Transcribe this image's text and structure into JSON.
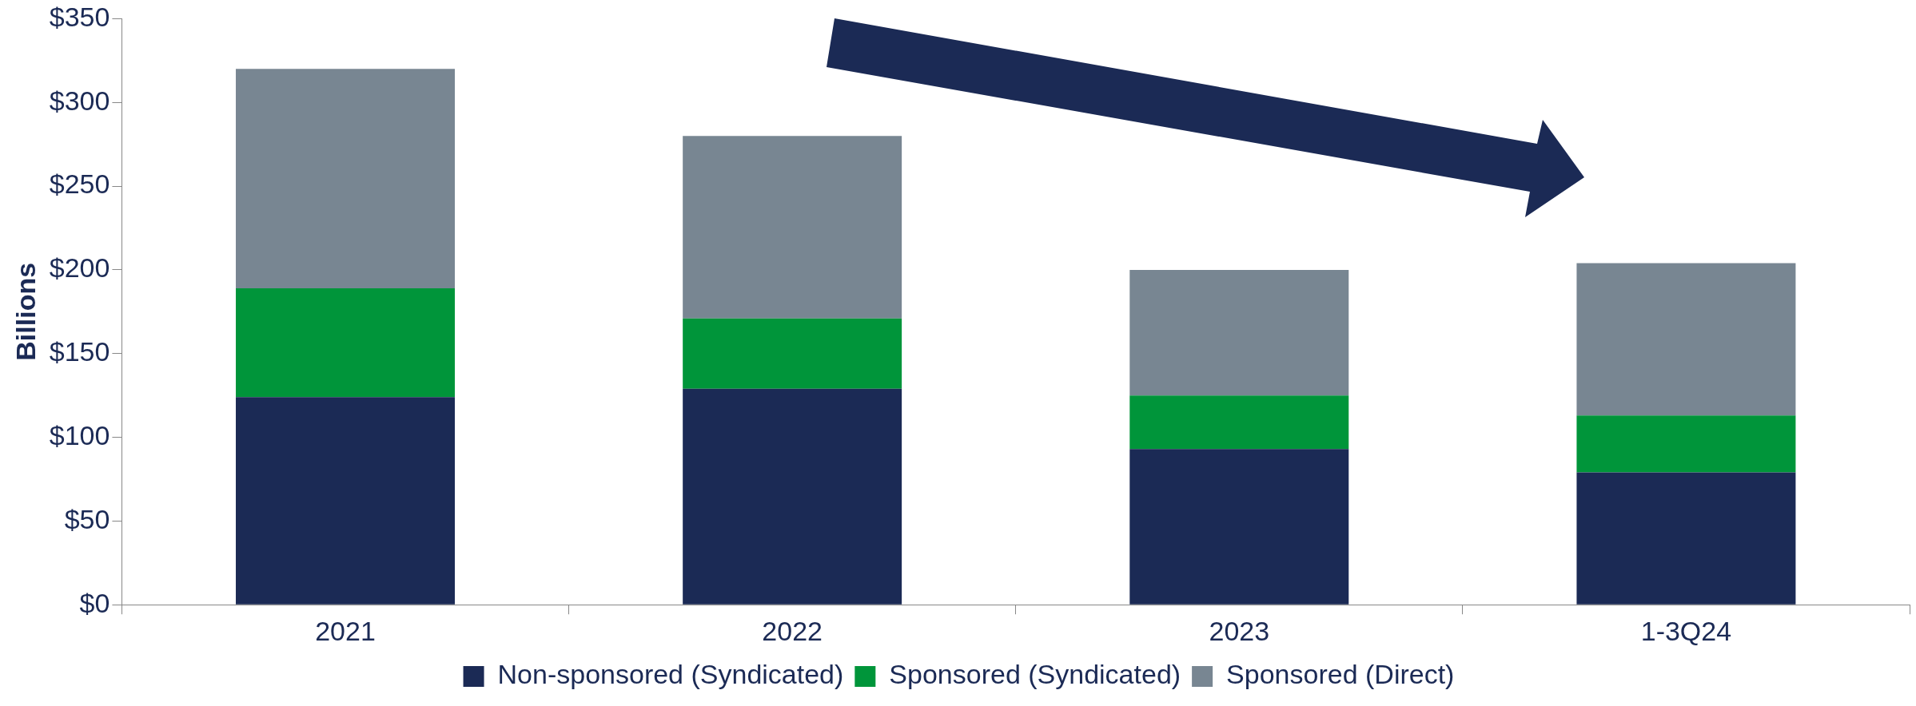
{
  "chart_data": {
    "type": "bar",
    "stacked": true,
    "ylabel": "Billions",
    "categories": [
      "2021",
      "2022",
      "2023",
      "1-3Q24"
    ],
    "series": [
      {
        "name": "Non-sponsored (Syndicated)",
        "color": "#1b2a55",
        "values": [
          124,
          129,
          93,
          79
        ]
      },
      {
        "name": "Sponsored (Syndicated)",
        "color": "#00953a",
        "values": [
          65,
          42,
          32,
          34
        ]
      },
      {
        "name": "Sponsored (Direct)",
        "color": "#788692",
        "values": [
          131,
          109,
          75,
          91
        ]
      }
    ],
    "ylim": [
      0,
      350
    ],
    "yticks": [
      {
        "value": 0,
        "label": "$0"
      },
      {
        "value": 50,
        "label": "$50"
      },
      {
        "value": 100,
        "label": "$100"
      },
      {
        "value": 150,
        "label": "$150"
      },
      {
        "value": 200,
        "label": "$200"
      },
      {
        "value": 250,
        "label": "$250"
      },
      {
        "value": 300,
        "label": "$300"
      },
      {
        "value": 350,
        "label": "$350"
      }
    ],
    "grid": false,
    "legend": "bottom"
  }
}
